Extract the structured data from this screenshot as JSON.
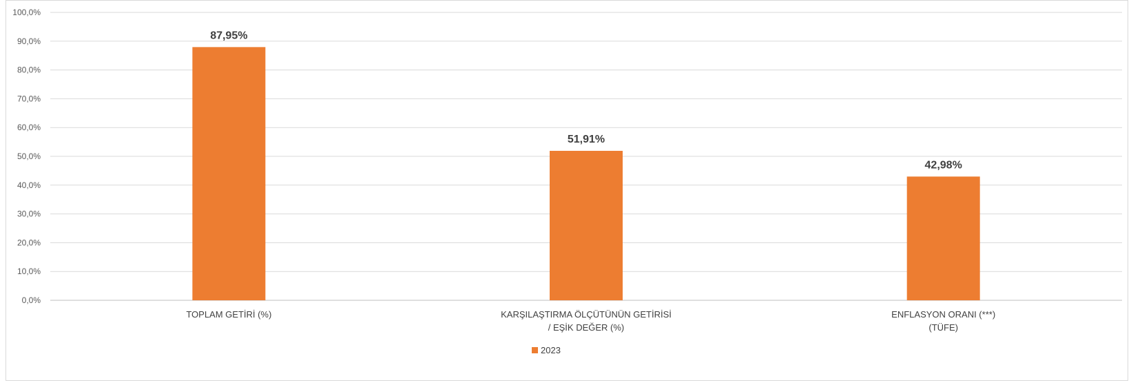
{
  "chart_data": {
    "type": "bar",
    "categories": [
      [
        "TOPLAM GETİRİ (%)"
      ],
      [
        "KARŞILAŞTIRMA ÖLÇÜTÜNÜN GETİRİSİ",
        "/ EŞİK DEĞER (%)"
      ],
      [
        "ENFLASYON ORANI (***)",
        "(TÜFE)"
      ]
    ],
    "series": [
      {
        "name": "2023",
        "values": [
          87.95,
          51.91,
          42.98
        ],
        "color": "#ED7D31"
      }
    ],
    "data_labels": [
      "87,95%",
      "51,91%",
      "42,98%"
    ],
    "ylim": [
      0,
      100
    ],
    "yticks": [
      0,
      10,
      20,
      30,
      40,
      50,
      60,
      70,
      80,
      90,
      100
    ],
    "ytick_labels": [
      "0,0%",
      "10,0%",
      "20,0%",
      "30,0%",
      "40,0%",
      "50,0%",
      "60,0%",
      "70,0%",
      "80,0%",
      "90,0%",
      "100,0%"
    ],
    "grid": true,
    "legend_position": "bottom"
  }
}
